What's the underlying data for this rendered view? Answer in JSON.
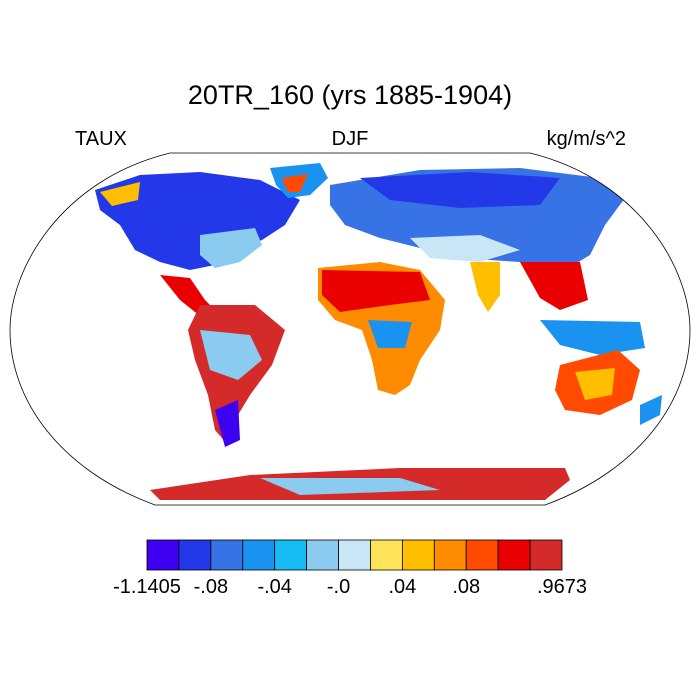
{
  "title": "20TR_160 (yrs 1885-1904)",
  "left_label": "TAUX",
  "center_label": "DJF",
  "right_label": "kg/m/s^2",
  "colorbar": {
    "colors": [
      "#3e00f0",
      "#2338e8",
      "#3873e6",
      "#1a93f0",
      "#15bdf4",
      "#8bcbef",
      "#c8e6f6",
      "#ffe45a",
      "#ffbf00",
      "#ff8c00",
      "#ff4a00",
      "#ea0000",
      "#d42a2a"
    ],
    "labels": [
      "-1.1405",
      "-.08",
      "-.04",
      "-.0",
      ".04",
      ".08",
      ".9673"
    ]
  },
  "map": {
    "projection": "Robinson",
    "ocean_color": "#ffffff",
    "field": "TAUX"
  }
}
